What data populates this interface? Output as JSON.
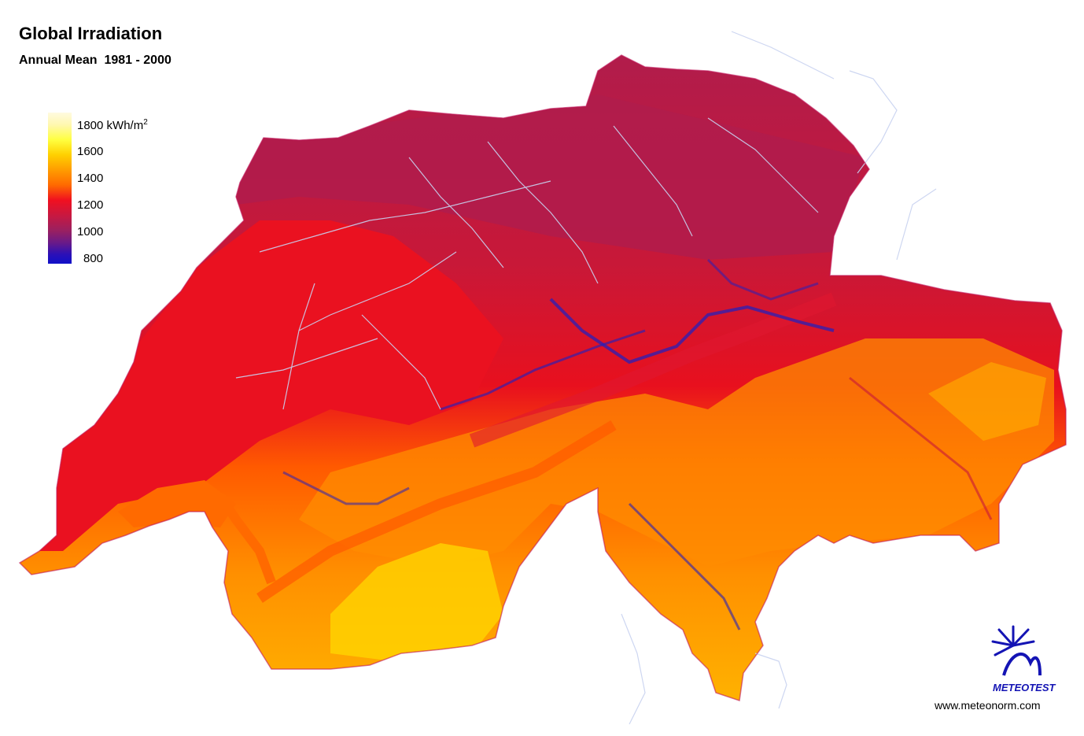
{
  "map": {
    "title": "Global Irradiation",
    "subtitle": "Annual Mean  1981 - 2000"
  },
  "legend": {
    "unit_base": "kWh/m",
    "unit_exp": "2",
    "entries": [
      "1800",
      "1600",
      "1400",
      "1200",
      "1000",
      "800"
    ]
  },
  "colors": {
    "north_plateau": "#b4184a",
    "west_plateau": "#e8101e",
    "alpine": "#ff8c00",
    "alpine_high": "#ffd400",
    "valleys": "#2820b8",
    "lakes": "#c8d2f0",
    "logo": "#1414b4"
  },
  "logo": {
    "name": "METEOTEST",
    "url": "www.meteonorm.com"
  }
}
